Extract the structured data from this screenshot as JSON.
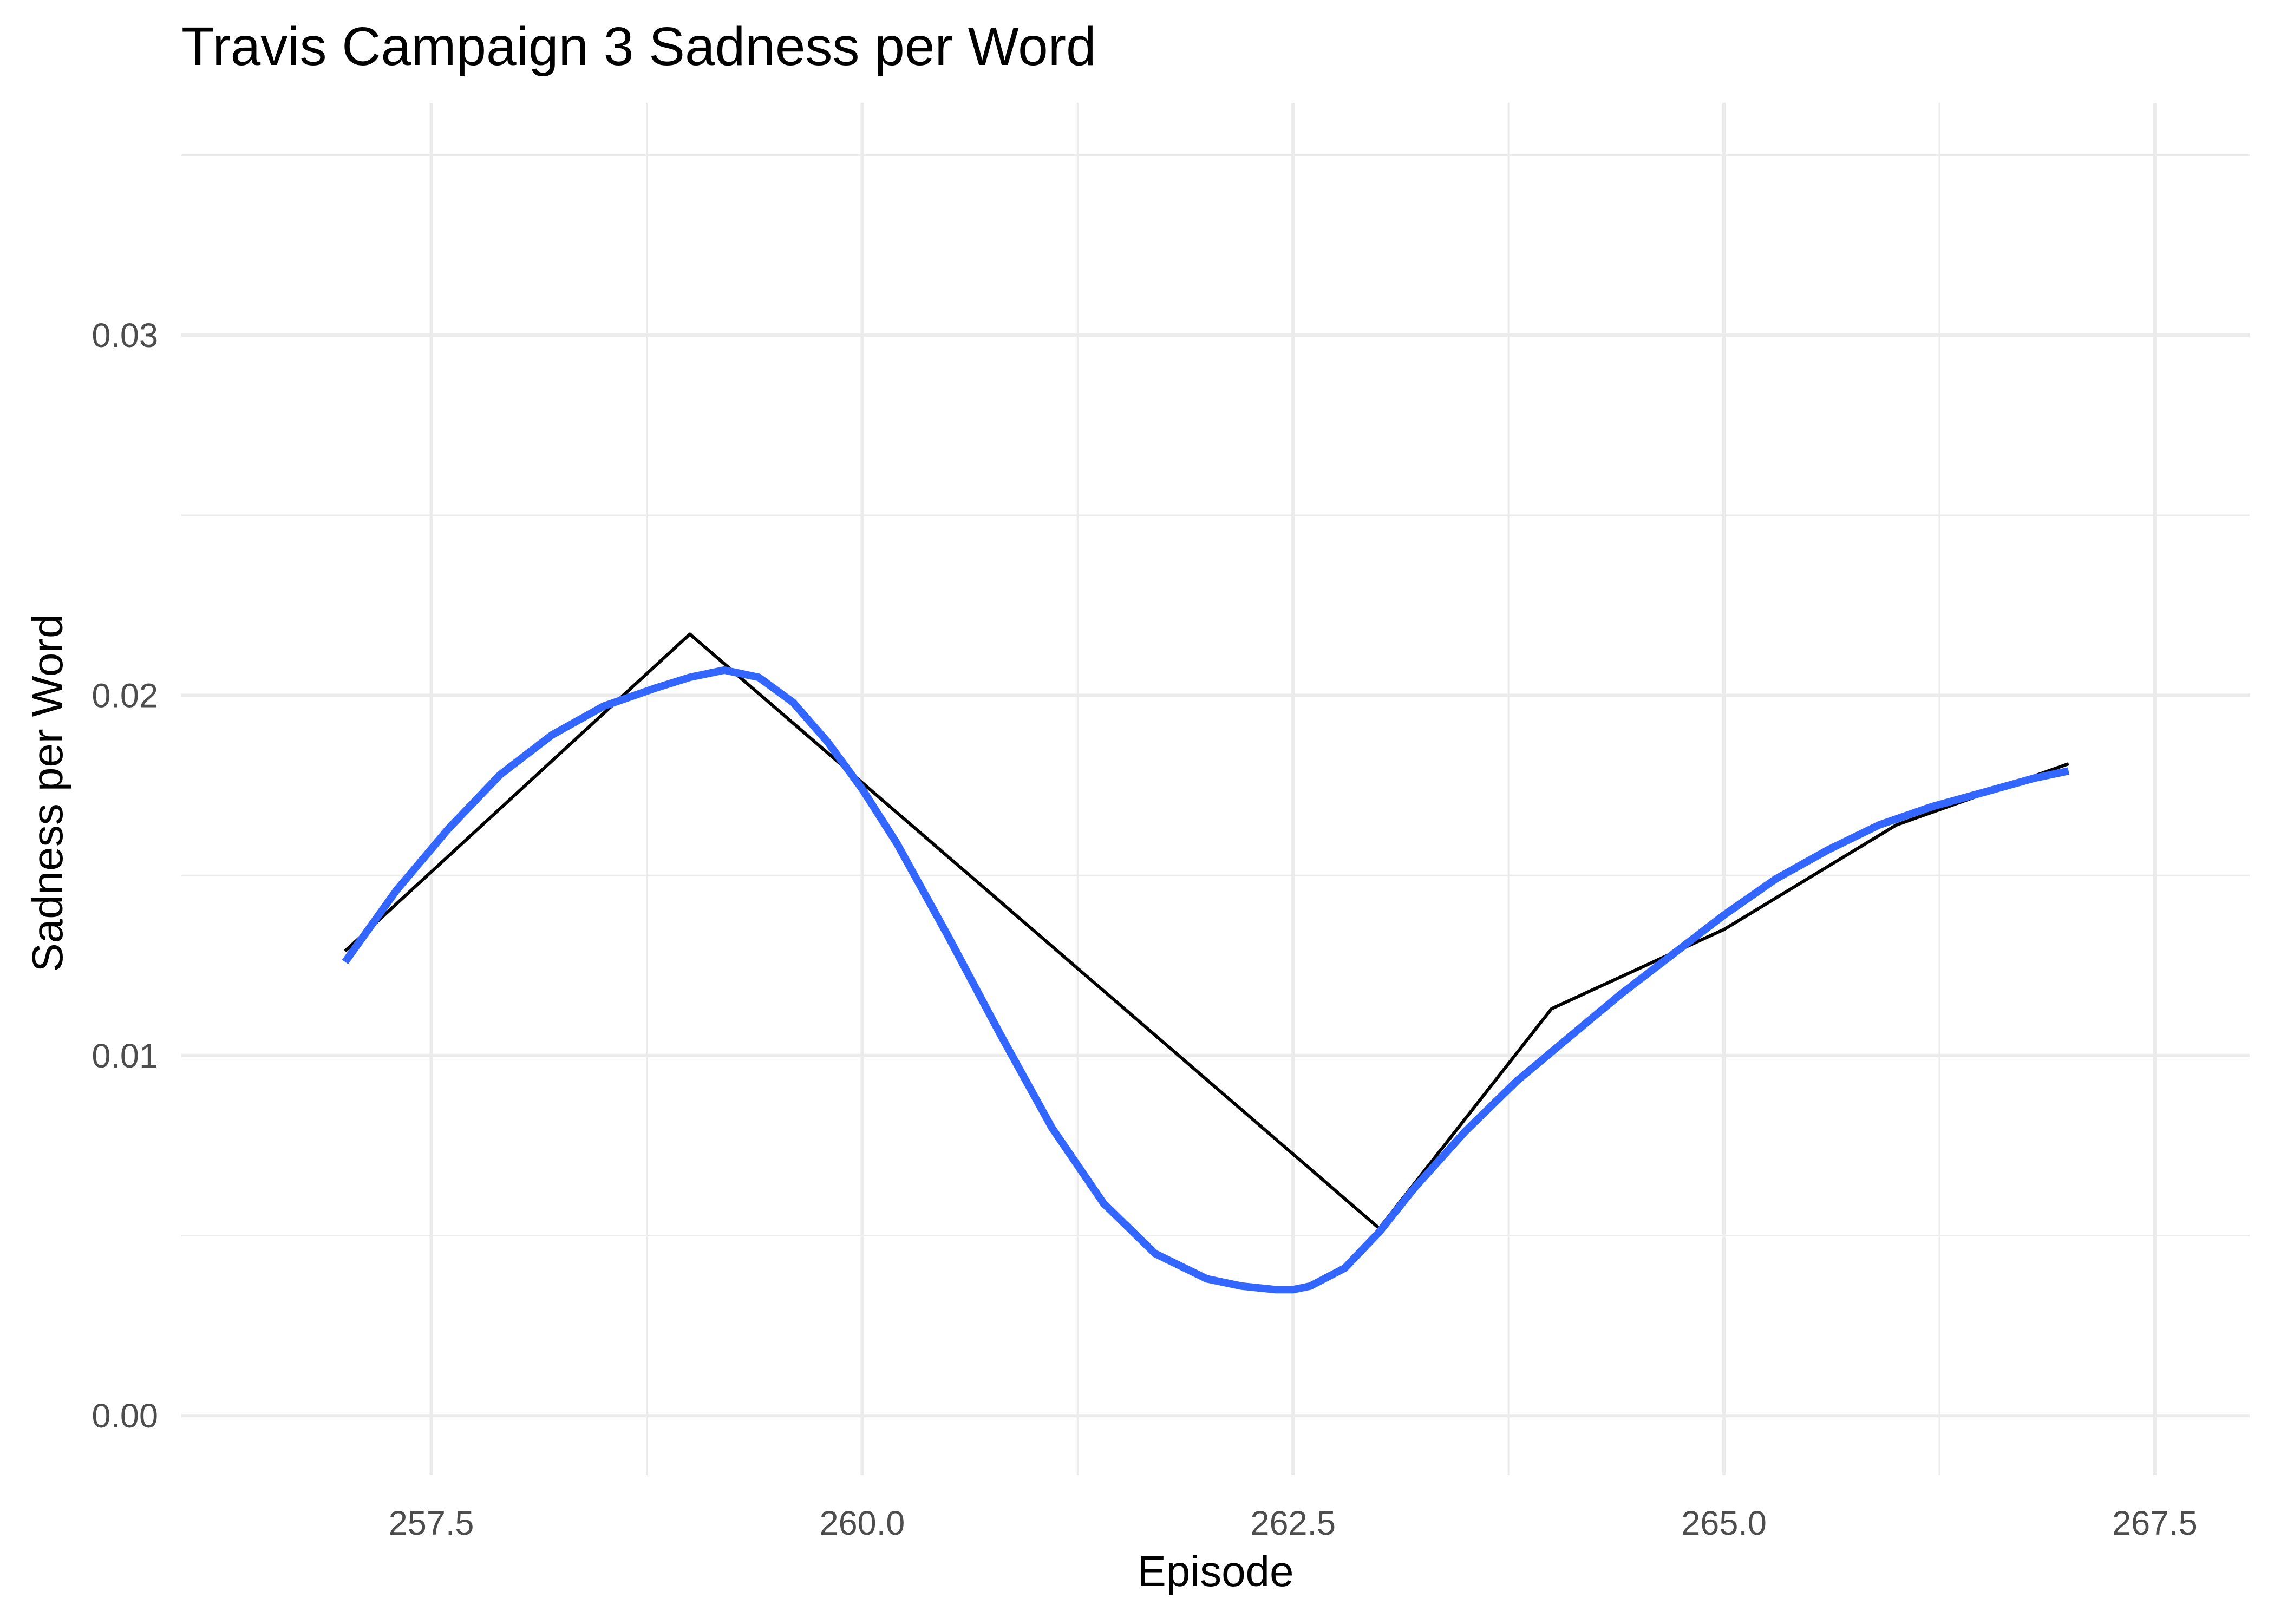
{
  "chart_data": {
    "type": "line",
    "title": "Travis Campaign 3 Sadness per Word",
    "xlabel": "Episode",
    "ylabel": "Sadness per Word",
    "xlim": [
      256.05,
      268.05
    ],
    "ylim": [
      -0.00165,
      0.03645
    ],
    "x_ticks": [
      257.5,
      260.0,
      262.5,
      265.0,
      267.5
    ],
    "x_tick_labels": [
      "257.5",
      "260.0",
      "262.5",
      "265.0",
      "267.5"
    ],
    "x_minor_ticks": [
      258.75,
      261.25,
      263.75,
      266.25
    ],
    "y_ticks": [
      0.0,
      0.01,
      0.02,
      0.03
    ],
    "y_tick_labels": [
      "0.00",
      "0.01",
      "0.02",
      "0.03"
    ],
    "y_minor_ticks": [
      0.005,
      0.015,
      0.025,
      0.035
    ],
    "grid": true,
    "series": [
      {
        "color": "#000000",
        "x": [
          257,
          259,
          263,
          264,
          265,
          266,
          267
        ],
        "y": [
          0.0129,
          0.0217,
          0.0052,
          0.0113,
          0.0135,
          0.0164,
          0.0181
        ]
      },
      {
        "color": "#3366ff",
        "smoothed": true,
        "x": [
          257.0,
          257.3,
          257.6,
          257.9,
          258.2,
          258.5,
          258.8,
          259.0,
          259.2,
          259.4,
          259.6,
          259.8,
          260.0,
          260.2,
          260.5,
          260.8,
          261.1,
          261.4,
          261.7,
          262.0,
          262.2,
          262.4,
          262.5,
          262.6,
          262.8,
          263.0,
          263.2,
          263.5,
          263.8,
          264.1,
          264.4,
          264.7,
          265.0,
          265.3,
          265.6,
          265.9,
          266.2,
          266.5,
          266.8,
          267.0
        ],
        "y": [
          0.0126,
          0.0146,
          0.0163,
          0.0178,
          0.0189,
          0.0197,
          0.0202,
          0.0205,
          0.0207,
          0.0205,
          0.0198,
          0.0187,
          0.0174,
          0.0159,
          0.0133,
          0.0106,
          0.008,
          0.0059,
          0.0045,
          0.0038,
          0.0036,
          0.0035,
          0.0035,
          0.0036,
          0.0041,
          0.0051,
          0.0063,
          0.0079,
          0.0093,
          0.0105,
          0.0117,
          0.0128,
          0.0139,
          0.0149,
          0.0157,
          0.0164,
          0.0169,
          0.0173,
          0.0177,
          0.0179
        ]
      }
    ]
  }
}
